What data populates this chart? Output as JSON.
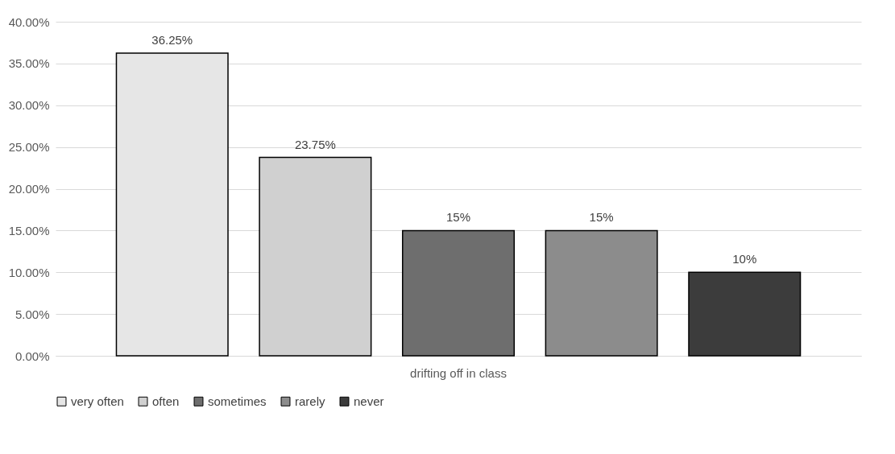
{
  "chart_data": {
    "type": "bar",
    "categories": [
      "drifting off in class"
    ],
    "series": [
      {
        "name": "very often",
        "color": "#e6e6e6",
        "values": [
          36.25
        ],
        "value_labels": [
          "36.25%"
        ]
      },
      {
        "name": "often",
        "color": "#d0d0d0",
        "values": [
          23.75
        ],
        "value_labels": [
          "23.75%"
        ]
      },
      {
        "name": "sometimes",
        "color": "#6e6e6e",
        "values": [
          15
        ],
        "value_labels": [
          "15%"
        ]
      },
      {
        "name": "rarely",
        "color": "#8c8c8c",
        "values": [
          15
        ],
        "value_labels": [
          "15%"
        ]
      },
      {
        "name": "never",
        "color": "#3c3c3c",
        "values": [
          10
        ],
        "value_labels": [
          "10%"
        ]
      }
    ],
    "ylim": [
      0,
      40
    ],
    "yticks": [
      {
        "value": 0,
        "label": "0.00%"
      },
      {
        "value": 5,
        "label": "5.00%"
      },
      {
        "value": 10,
        "label": "10.00%"
      },
      {
        "value": 15,
        "label": "15.00%"
      },
      {
        "value": 20,
        "label": "20.00%"
      },
      {
        "value": 25,
        "label": "25.00%"
      },
      {
        "value": 30,
        "label": "30.00%"
      },
      {
        "value": 35,
        "label": "35.00%"
      },
      {
        "value": 40,
        "label": "40.00%"
      }
    ],
    "grid": "y",
    "legend": "bottom"
  }
}
